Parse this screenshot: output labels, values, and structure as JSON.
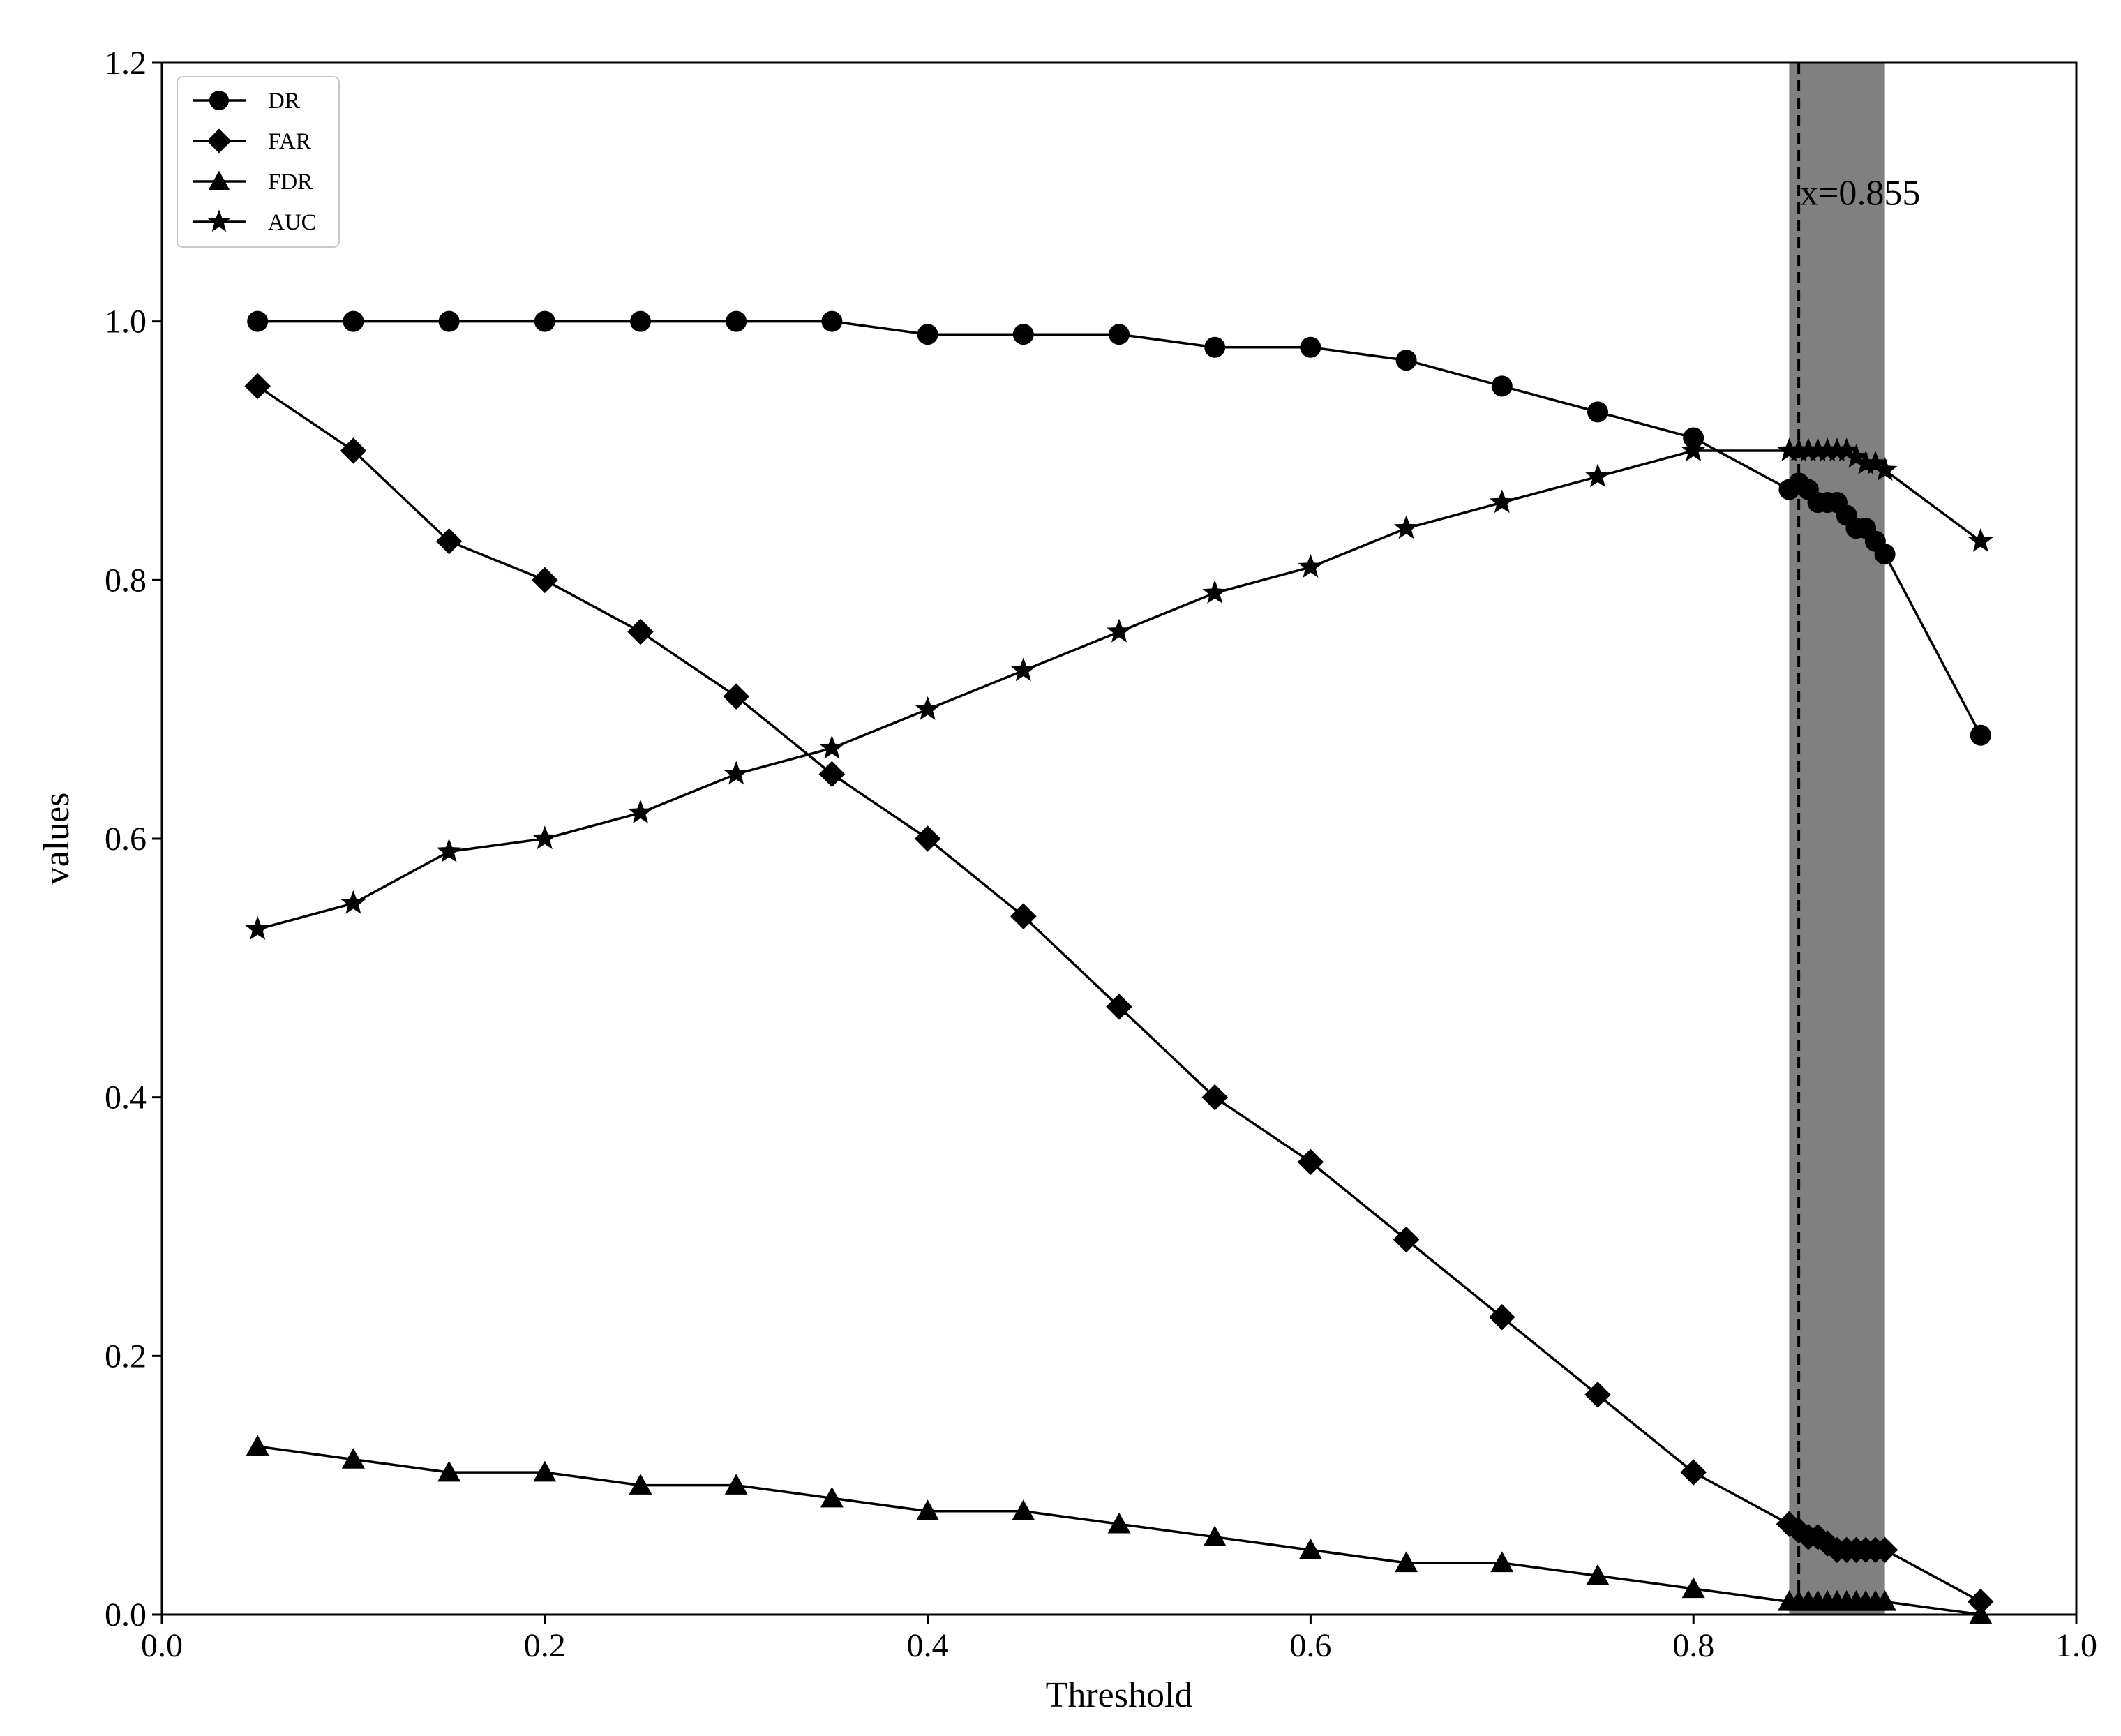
{
  "chart_data": {
    "type": "line",
    "title": "",
    "xlabel": "Threshold",
    "ylabel": "values",
    "xlim": [
      0.0,
      1.0
    ],
    "ylim": [
      0.0,
      1.2
    ],
    "xticks": [
      "0.0",
      "0.2",
      "0.4",
      "0.6",
      "0.8",
      "1.0"
    ],
    "yticks": [
      "0.0",
      "0.2",
      "0.4",
      "0.6",
      "0.8",
      "1.0",
      "1.2"
    ],
    "grid": false,
    "legend_position": "top-left",
    "shaded_region": {
      "x_start": 0.85,
      "x_end": 0.9,
      "color": "#808080"
    },
    "vertical_line": {
      "x": 0.855,
      "style": "dashed",
      "label": "x=0.855"
    },
    "x": [
      0.05,
      0.1,
      0.15,
      0.2,
      0.25,
      0.3,
      0.35,
      0.4,
      0.45,
      0.5,
      0.55,
      0.6,
      0.65,
      0.7,
      0.75,
      0.8,
      0.85,
      0.855,
      0.86,
      0.865,
      0.87,
      0.875,
      0.88,
      0.885,
      0.89,
      0.895,
      0.9,
      0.95
    ],
    "series": [
      {
        "name": "DR",
        "marker": "circle",
        "values": [
          1.0,
          1.0,
          1.0,
          1.0,
          1.0,
          1.0,
          1.0,
          0.99,
          0.99,
          0.99,
          0.98,
          0.98,
          0.97,
          0.95,
          0.93,
          0.91,
          0.87,
          0.875,
          0.87,
          0.86,
          0.86,
          0.86,
          0.85,
          0.84,
          0.84,
          0.83,
          0.82,
          0.68
        ]
      },
      {
        "name": "FAR",
        "marker": "diamond",
        "values": [
          0.95,
          0.9,
          0.83,
          0.8,
          0.76,
          0.71,
          0.65,
          0.6,
          0.54,
          0.47,
          0.4,
          0.35,
          0.29,
          0.23,
          0.17,
          0.11,
          0.07,
          0.065,
          0.06,
          0.06,
          0.055,
          0.05,
          0.05,
          0.05,
          0.05,
          0.05,
          0.05,
          0.01
        ]
      },
      {
        "name": "FDR",
        "marker": "triangle",
        "values": [
          0.13,
          0.12,
          0.11,
          0.11,
          0.1,
          0.1,
          0.09,
          0.08,
          0.08,
          0.07,
          0.06,
          0.05,
          0.04,
          0.04,
          0.03,
          0.02,
          0.01,
          0.01,
          0.01,
          0.01,
          0.01,
          0.01,
          0.01,
          0.01,
          0.01,
          0.01,
          0.01,
          0.0
        ]
      },
      {
        "name": "AUC",
        "marker": "star",
        "values": [
          0.53,
          0.55,
          0.59,
          0.6,
          0.62,
          0.65,
          0.67,
          0.7,
          0.73,
          0.76,
          0.79,
          0.81,
          0.84,
          0.86,
          0.88,
          0.9,
          0.9,
          0.9,
          0.9,
          0.9,
          0.9,
          0.9,
          0.9,
          0.895,
          0.89,
          0.89,
          0.885,
          0.83
        ]
      }
    ]
  }
}
